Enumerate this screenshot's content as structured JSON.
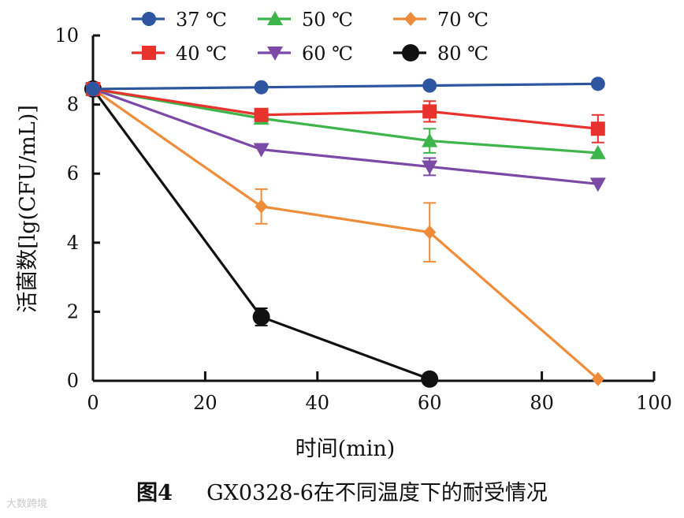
{
  "chart_data": {
    "type": "line",
    "xlabel": "时间(min)",
    "ylabel": "活菌数[lg(CFU/mL)]",
    "xlim": [
      0,
      100
    ],
    "ylim": [
      0,
      10
    ],
    "xticks": [
      0,
      20,
      40,
      60,
      80,
      100
    ],
    "yticks": [
      0,
      2,
      4,
      6,
      8,
      10
    ],
    "grid": false,
    "legend_position": "top",
    "series": [
      {
        "name": "37 ℃",
        "color": "#2e55a0",
        "marker": "circle",
        "x": [
          0,
          30,
          60,
          90
        ],
        "y": [
          8.45,
          8.5,
          8.55,
          8.6
        ],
        "err": [
          0,
          0,
          0,
          0
        ]
      },
      {
        "name": "40 ℃",
        "color": "#e8322e",
        "marker": "square",
        "x": [
          0,
          30,
          60,
          90
        ],
        "y": [
          8.45,
          7.7,
          7.8,
          7.3
        ],
        "err": [
          0,
          0.1,
          0.3,
          0.4
        ]
      },
      {
        "name": "50 ℃",
        "color": "#3db54a",
        "marker": "triangle-up",
        "x": [
          0,
          30,
          60,
          90
        ],
        "y": [
          8.45,
          7.6,
          6.95,
          6.6
        ],
        "err": [
          0,
          0,
          0.35,
          0
        ]
      },
      {
        "name": "60 ℃",
        "color": "#7a4aa6",
        "marker": "triangle-down",
        "x": [
          0,
          30,
          60,
          90
        ],
        "y": [
          8.45,
          6.7,
          6.2,
          5.7
        ],
        "err": [
          0,
          0,
          0.25,
          0
        ]
      },
      {
        "name": "70 ℃",
        "color": "#ef8c3a",
        "marker": "diamond",
        "x": [
          0,
          30,
          60,
          90
        ],
        "y": [
          8.45,
          5.05,
          4.3,
          0.05
        ],
        "err": [
          0,
          0.5,
          0.85,
          0
        ]
      },
      {
        "name": "80 ℃",
        "color": "#111111",
        "marker": "circle-big",
        "x": [
          0,
          30,
          60
        ],
        "y": [
          8.45,
          1.85,
          0.05
        ],
        "err": [
          0,
          0.25,
          0
        ]
      }
    ]
  },
  "caption": {
    "label": "图4",
    "text": "GX0328-6在不同温度下的耐受情况"
  },
  "watermark": "大数跨境"
}
